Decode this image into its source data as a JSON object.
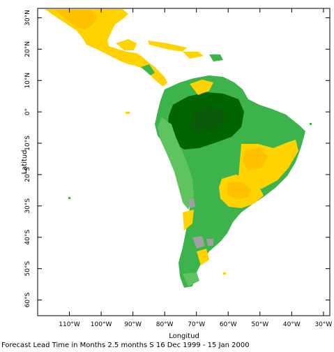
{
  "chart_data": {
    "type": "heatmap",
    "title": "",
    "xlabel": "Longitud",
    "ylabel": "Latitud",
    "xlim": [
      -120,
      -28
    ],
    "ylim": [
      -65,
      33
    ],
    "x_ticks": [
      {
        "value": -110,
        "label": "110°W"
      },
      {
        "value": -100,
        "label": "100°W"
      },
      {
        "value": -90,
        "label": "90°W"
      },
      {
        "value": -80,
        "label": "80°W"
      },
      {
        "value": -70,
        "label": "70°W"
      },
      {
        "value": -60,
        "label": "60°W"
      },
      {
        "value": -50,
        "label": "50°W"
      },
      {
        "value": -40,
        "label": "40°W"
      },
      {
        "value": -30,
        "label": "30°W"
      }
    ],
    "y_ticks": [
      {
        "value": 30,
        "label": "30°N"
      },
      {
        "value": 20,
        "label": "20°N"
      },
      {
        "value": 10,
        "label": "10°N"
      },
      {
        "value": 0,
        "label": "0°"
      },
      {
        "value": -10,
        "label": "10°S"
      },
      {
        "value": -20,
        "label": "20°S"
      },
      {
        "value": -30,
        "label": "30°S"
      },
      {
        "value": -40,
        "label": "40°S"
      },
      {
        "value": -50,
        "label": "50°S"
      },
      {
        "value": -60,
        "label": "60°S"
      }
    ],
    "colors": {
      "dark_green": "#006400",
      "green": "#3cb44b",
      "light_green": "#5fc35f",
      "gray": "#a0a0a0",
      "yellow": "#ffd200",
      "orange": "#ffc000"
    },
    "caption": "Forecast Lead Time in Months 2.5 months S 16 Dec 1999 - 15 Jan 2000"
  }
}
